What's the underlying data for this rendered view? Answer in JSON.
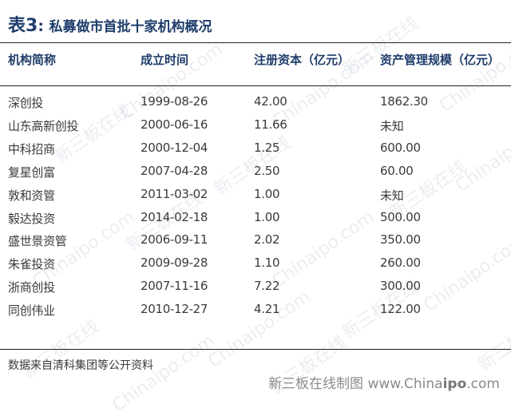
{
  "title": {
    "label": "表3",
    "sep": ":",
    "text": "私募做市首批十家机构概况"
  },
  "table": {
    "headers": [
      "机构简称",
      "成立时间",
      "注册资本（亿元）",
      "资产管理规模（亿元）"
    ],
    "rows": [
      [
        "深创投",
        "1999-08-26",
        "42.00",
        "1862.30"
      ],
      [
        "山东高新创投",
        "2000-06-16",
        "11.66",
        "未知"
      ],
      [
        "中科招商",
        "2000-12-04",
        "1.25",
        "600.00"
      ],
      [
        "复星创富",
        "2007-04-28",
        "2.50",
        "60.00"
      ],
      [
        "敦和资管",
        "2011-03-02",
        "1.00",
        "未知"
      ],
      [
        "毅达投资",
        "2014-02-18",
        "1.00",
        "500.00"
      ],
      [
        "盛世景资管",
        "2006-09-11",
        "2.02",
        "350.00"
      ],
      [
        "朱雀投资",
        "2009-09-28",
        "1.10",
        "260.00"
      ],
      [
        "浙商创投",
        "2007-11-16",
        "7.22",
        "300.00"
      ],
      [
        "同创伟业",
        "2010-12-27",
        "4.21",
        "122.00"
      ]
    ]
  },
  "note": "数据来自清科集团等公开资料",
  "credit": {
    "prefix": "新三板在线制图 www.China",
    "bold": "ipo",
    "suffix": ".com"
  },
  "watermark": {
    "cn": "新三板在线",
    "en": "Chinaipo.com"
  },
  "colors": {
    "title": "#1f3d6b",
    "text": "#3a3a3a"
  }
}
